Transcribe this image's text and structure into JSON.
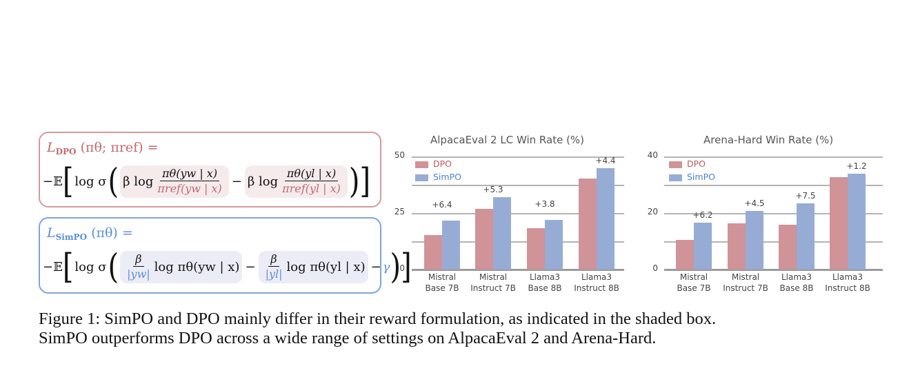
{
  "formulas": {
    "dpo": {
      "loss_name": "L",
      "subscript": "DPO",
      "args": "(πθ; πref) =",
      "expr_prefix": "−𝔼",
      "log_sigma": "log σ",
      "beta_log": "β log",
      "num_w": "πθ(yw | x)",
      "den_w": "πref(yw | x)",
      "minus": "−",
      "num_l": "πθ(yl | x)",
      "den_l": "πref(yl | x)",
      "border_color": "#d4999c",
      "accent_color": "#c06a6f"
    },
    "simpo": {
      "loss_name": "L",
      "subscript": "SimPO",
      "args": "(πθ) =",
      "expr_prefix": "−𝔼",
      "log_sigma": "log σ",
      "beta": "β",
      "den_w": "|yw|",
      "log_w": "log πθ(yw | x)",
      "minus": "−",
      "den_l": "|yl|",
      "log_l": "log πθ(yl | x)",
      "gamma": "γ",
      "border_color": "#7ea3dc",
      "accent_color": "#5b8fd6"
    }
  },
  "chart_data": [
    {
      "type": "bar",
      "title": "AlpacaEval 2 LC Win Rate (%)",
      "xlabel": "",
      "ylabel": "",
      "categories": [
        "Mistral Base 7B",
        "Mistral Instruct 7B",
        "Llama3 Base 8B",
        "Llama3 Instruct 8B"
      ],
      "category_lines": [
        [
          "Mistral",
          "Base 7B"
        ],
        [
          "Mistral",
          "Instruct 7B"
        ],
        [
          "Llama3",
          "Base 8B"
        ],
        [
          "Llama3",
          "Instruct 8B"
        ]
      ],
      "series": [
        {
          "name": "DPO",
          "color": "#cf9398",
          "values": [
            15.1,
            26.8,
            18.2,
            40.3
          ]
        },
        {
          "name": "SimPO",
          "color": "#97acd5",
          "values": [
            21.5,
            32.1,
            22.0,
            44.7
          ]
        }
      ],
      "annotations": [
        "+6.4",
        "+5.3",
        "+3.8",
        "+4.4"
      ],
      "yticks": [
        "0",
        "25",
        "50"
      ],
      "ylim": [
        0,
        50
      ],
      "grid": true,
      "legend_position": "upper left"
    },
    {
      "type": "bar",
      "title": "Arena-Hard Win Rate (%)",
      "xlabel": "",
      "ylabel": "",
      "categories": [
        "Mistral Base 7B",
        "Mistral Instruct 7B",
        "Llama3 Base 8B",
        "Llama3 Instruct 8B"
      ],
      "category_lines": [
        [
          "Mistral",
          "Base 7B"
        ],
        [
          "Mistral",
          "Instruct 7B"
        ],
        [
          "Llama3",
          "Base 8B"
        ],
        [
          "Llama3",
          "Instruct 8B"
        ]
      ],
      "series": [
        {
          "name": "DPO",
          "color": "#cf9398",
          "values": [
            10.4,
            16.3,
            15.9,
            32.6
          ]
        },
        {
          "name": "SimPO",
          "color": "#97acd5",
          "values": [
            16.6,
            20.8,
            23.4,
            33.8
          ]
        }
      ],
      "annotations": [
        "+6.2",
        "+4.5",
        "+7.5",
        "+1.2"
      ],
      "yticks": [
        "0",
        "20",
        "40"
      ],
      "ylim": [
        0,
        40
      ],
      "grid": true,
      "legend_position": "upper left"
    }
  ],
  "legend": {
    "dpo_label": "DPO",
    "simpo_label": "SimPO",
    "dpo_text_color": "#c0575f",
    "simpo_text_color": "#4a80d4"
  },
  "caption": {
    "line1": "Figure 1: SimPO and DPO mainly differ in their reward formulation, as indicated in the shaded box.",
    "line2": "SimPO outperforms DPO across a wide range of settings on AlpacaEval 2 and Arena-Hard."
  }
}
